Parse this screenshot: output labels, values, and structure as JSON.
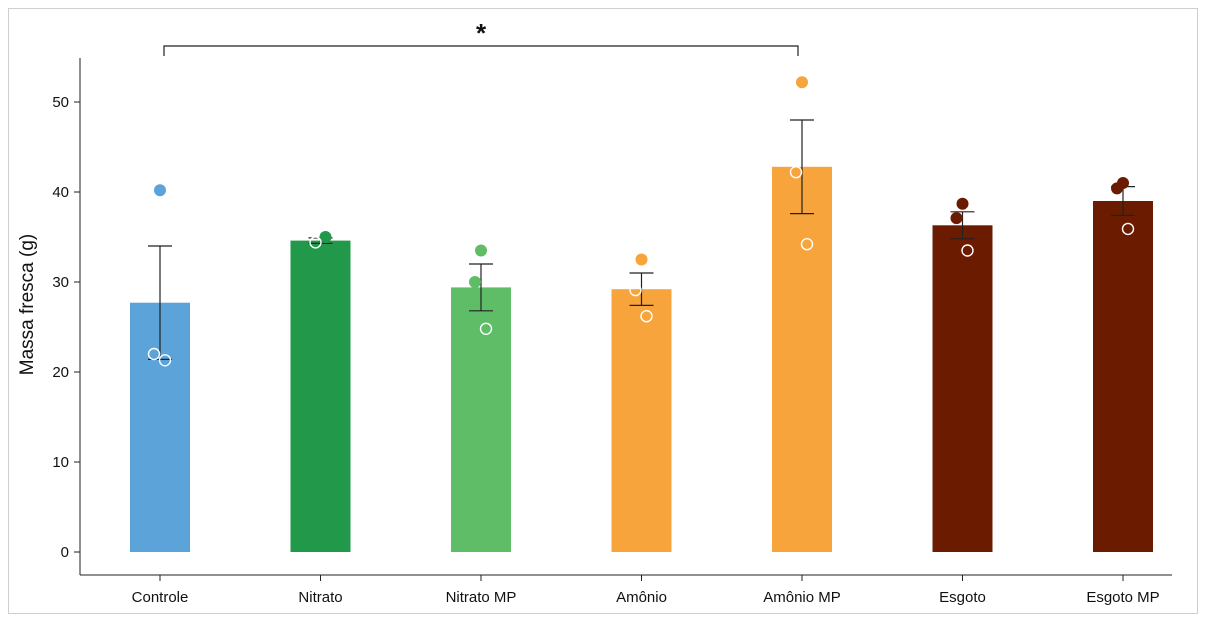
{
  "chart_data": {
    "type": "bar",
    "ylabel": "Massa fresca (g)",
    "xlabel": "",
    "ylim": [
      0,
      55
    ],
    "yticks": [
      0,
      10,
      20,
      30,
      40,
      50
    ],
    "categories": [
      "Controle",
      "Nitrato",
      "Nitrato MP",
      "Amônio",
      "Amônio MP",
      "Esgoto",
      "Esgoto MP"
    ],
    "values": [
      27.7,
      34.6,
      29.4,
      29.2,
      42.8,
      36.3,
      39.0
    ],
    "error": [
      6.3,
      0.3,
      2.6,
      1.8,
      5.2,
      1.5,
      1.6
    ],
    "colors": [
      "#5ba3d9",
      "#22994a",
      "#5fbd68",
      "#f8a43d",
      "#f8a43d",
      "#6b1c00",
      "#6b1c00"
    ],
    "points": [
      {
        "values": [
          40.2,
          22.0,
          21.3
        ],
        "hollow": [
          false,
          true,
          true
        ]
      },
      {
        "values": [
          35.0,
          34.4
        ],
        "hollow": [
          false,
          true
        ]
      },
      {
        "values": [
          33.5,
          30.0,
          24.8
        ],
        "hollow": [
          false,
          false,
          true
        ]
      },
      {
        "values": [
          32.5,
          29.1,
          26.2
        ],
        "hollow": [
          false,
          true,
          true
        ]
      },
      {
        "values": [
          52.2,
          42.2,
          34.2
        ],
        "hollow": [
          false,
          true,
          true
        ]
      },
      {
        "values": [
          38.7,
          37.1,
          33.5
        ],
        "hollow": [
          false,
          false,
          true
        ]
      },
      {
        "values": [
          41.0,
          40.4,
          35.9
        ],
        "hollow": [
          false,
          false,
          true
        ]
      }
    ],
    "significance": {
      "from": "Controle",
      "to": "Amônio MP",
      "label": "*"
    },
    "grid": false,
    "legend": "none"
  }
}
